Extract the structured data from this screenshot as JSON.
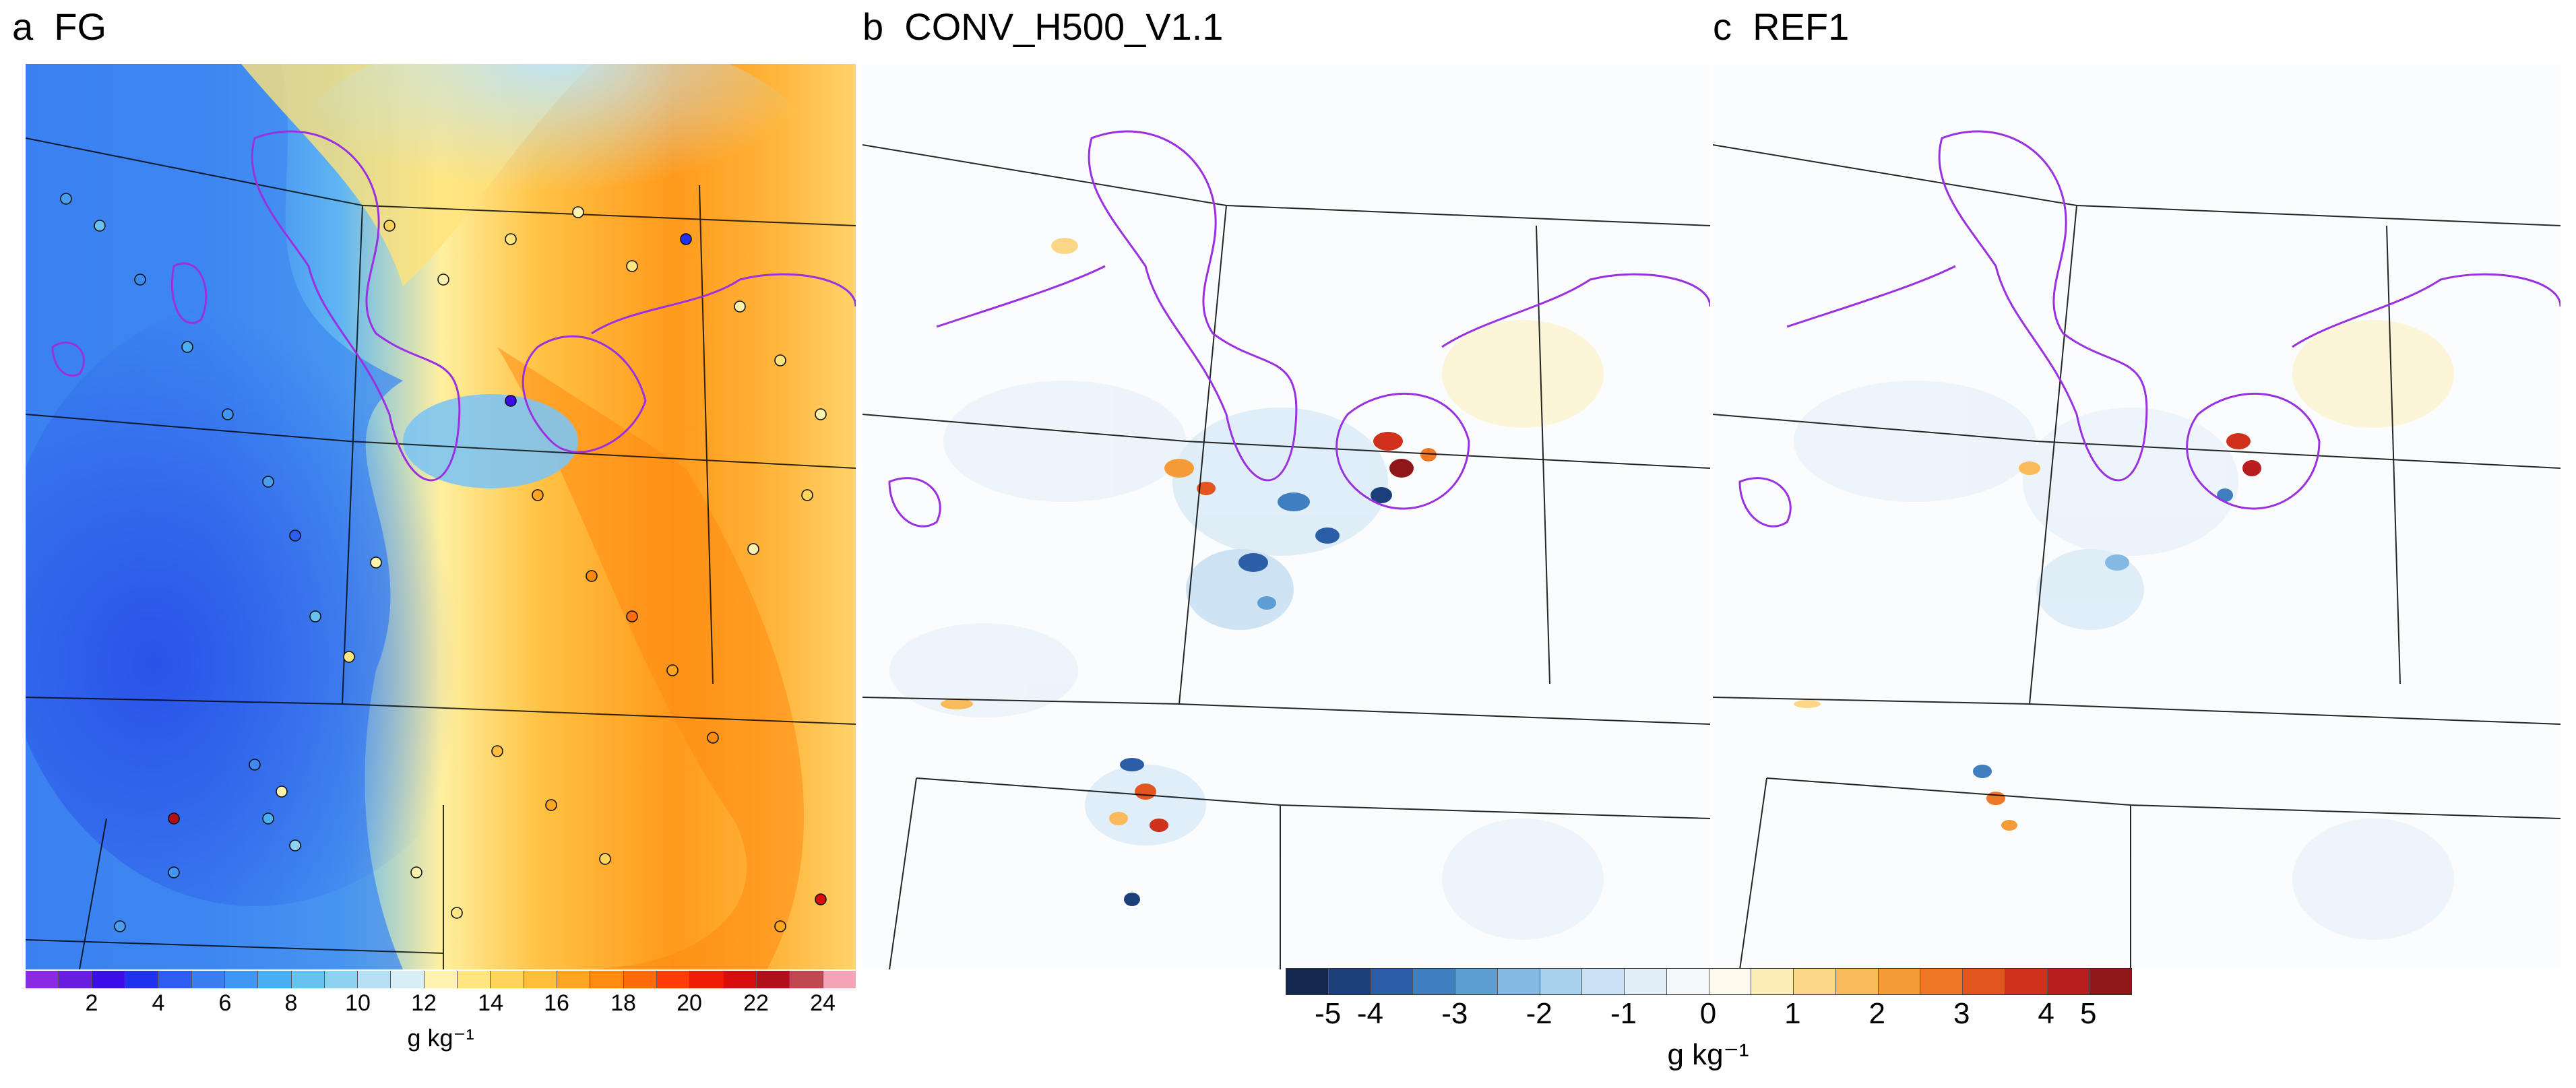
{
  "panels": [
    {
      "letter": "a",
      "title": "FG"
    },
    {
      "letter": "b",
      "title": "CONV_H500_V1.1"
    },
    {
      "letter": "c",
      "title": "REF1"
    }
  ],
  "colorbar_fg": {
    "ticks": [
      "2",
      "4",
      "6",
      "8",
      "10",
      "12",
      "14",
      "16",
      "18",
      "20",
      "22",
      "24"
    ],
    "units": "g kg⁻¹",
    "colors": [
      "#8a2be2",
      "#6a1fe0",
      "#3a0ee8",
      "#1e32f0",
      "#2e5ef0",
      "#3a7ef2",
      "#3f96f4",
      "#4aaef2",
      "#66c2f0",
      "#8ed2f2",
      "#b6e0f4",
      "#d8eef6",
      "#fff3b0",
      "#ffe680",
      "#ffd45a",
      "#ffbf3a",
      "#ffa522",
      "#ff8a12",
      "#ff6a0a",
      "#ff3c06",
      "#f01d06",
      "#d60e0e",
      "#b0101a",
      "#c04850",
      "#f4a4b4"
    ]
  },
  "colorbar_diff": {
    "ticks": [
      "-5",
      "-4",
      "-3",
      "-2",
      "-1",
      "0",
      "1",
      "2",
      "3",
      "4",
      "5"
    ],
    "units": "g kg⁻¹",
    "colors": [
      "#14284f",
      "#1c3f7a",
      "#2a5fa8",
      "#3f7fc0",
      "#5f9ed2",
      "#84b9e2",
      "#a9d0ec",
      "#c9e2f3",
      "#e2eff8",
      "#f4f9fc",
      "#fdf9ec",
      "#fdeeb8",
      "#fcd788",
      "#f9bb5a",
      "#f59b38",
      "#ee7826",
      "#e2551e",
      "#cf311c",
      "#b81e1e",
      "#8f1717"
    ]
  }
}
